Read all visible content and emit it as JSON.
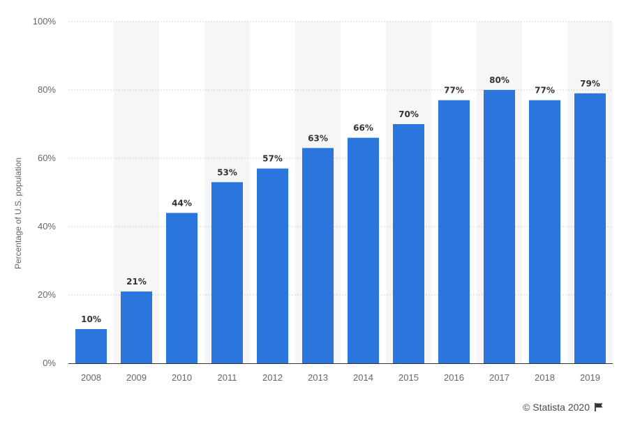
{
  "chart_data": {
    "type": "bar",
    "title": "",
    "xlabel": "",
    "ylabel": "Percentage of U.S. population",
    "categories": [
      "2008",
      "2009",
      "2010",
      "2011",
      "2012",
      "2013",
      "2014",
      "2015",
      "2016",
      "2017",
      "2018",
      "2019"
    ],
    "values": [
      10,
      21,
      44,
      53,
      57,
      63,
      66,
      70,
      77,
      80,
      77,
      79
    ],
    "value_labels": [
      "10%",
      "21%",
      "44%",
      "53%",
      "57%",
      "63%",
      "66%",
      "70%",
      "77%",
      "80%",
      "77%",
      "79%"
    ],
    "ylim": [
      0,
      100
    ],
    "yticks": [
      0,
      20,
      40,
      60,
      80,
      100
    ],
    "ytick_labels": [
      "0%",
      "20%",
      "40%",
      "60%",
      "80%",
      "100%"
    ],
    "grid": true,
    "bar_color": "#2a76dd",
    "band_color": "#f6f6f6"
  },
  "footer": {
    "credit": "© Statista 2020",
    "flag_icon": "flag-icon"
  }
}
